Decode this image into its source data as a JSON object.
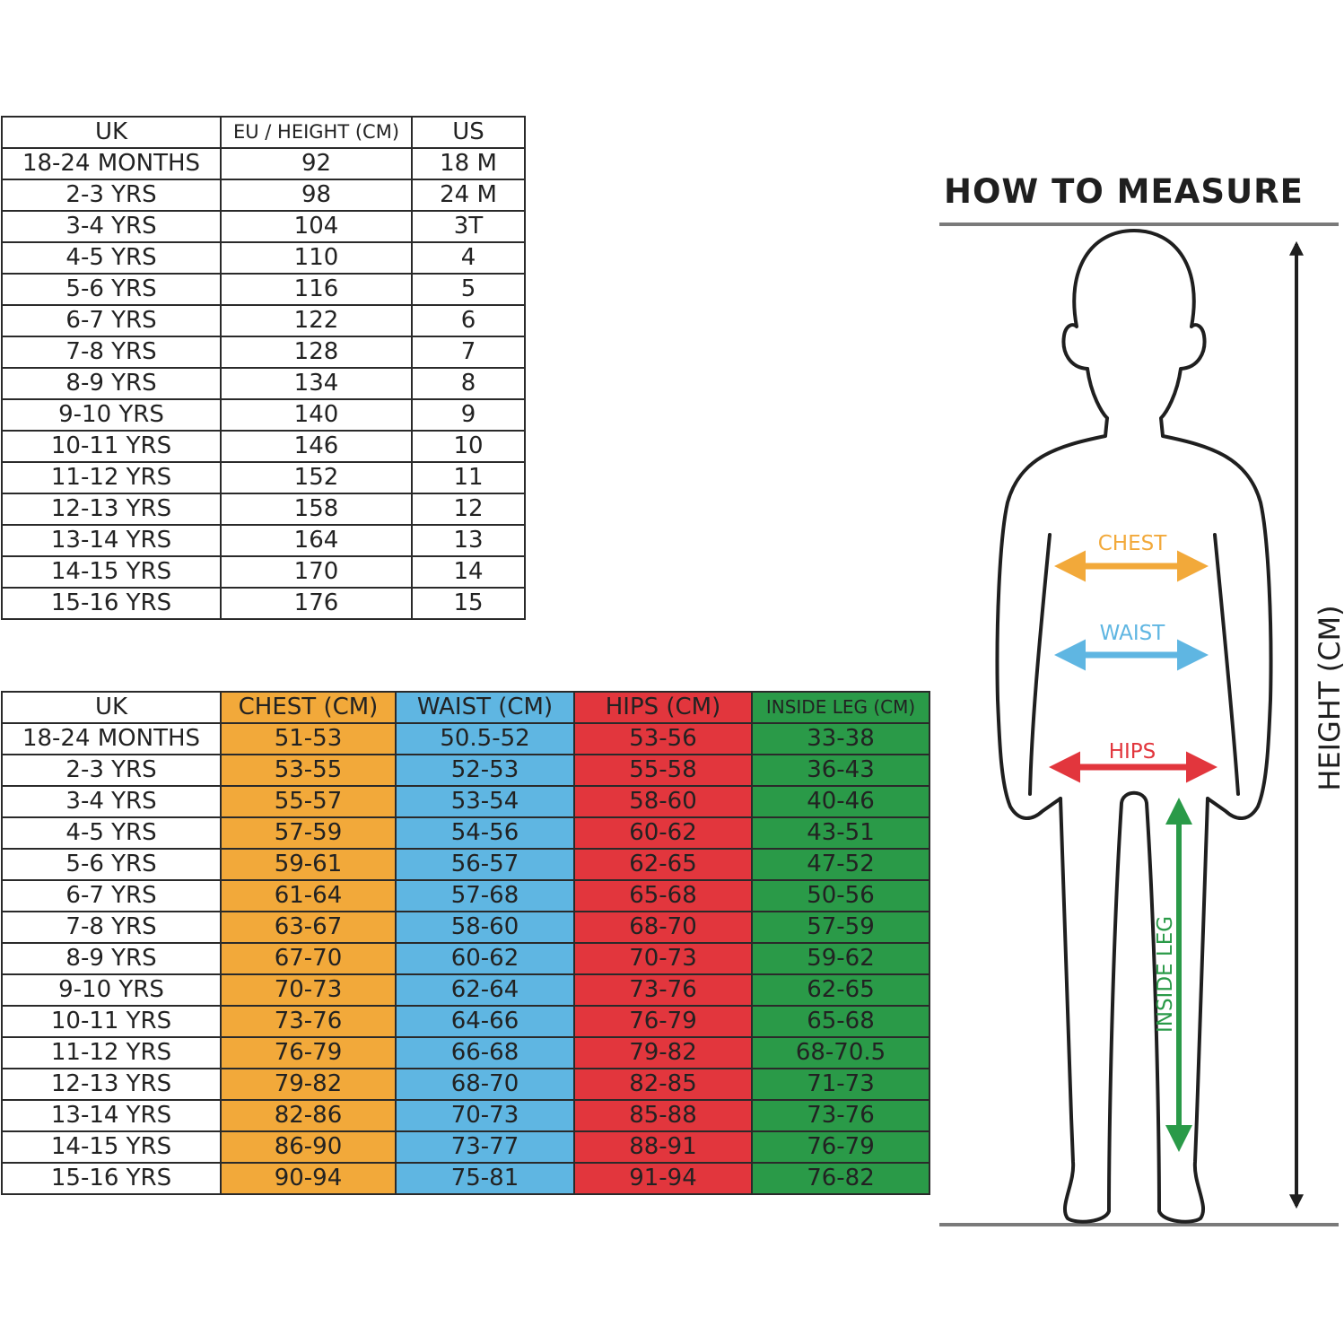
{
  "size_table": {
    "headers": [
      "UK",
      "EU / HEIGHT (CM)",
      "US"
    ],
    "rows": [
      [
        "18-24 MONTHS",
        "92",
        "18 M"
      ],
      [
        "2-3 YRS",
        "98",
        "24 M"
      ],
      [
        "3-4 YRS",
        "104",
        "3T"
      ],
      [
        "4-5 YRS",
        "110",
        "4"
      ],
      [
        "5-6 YRS",
        "116",
        "5"
      ],
      [
        "6-7 YRS",
        "122",
        "6"
      ],
      [
        "7-8 YRS",
        "128",
        "7"
      ],
      [
        "8-9 YRS",
        "134",
        "8"
      ],
      [
        "9-10 YRS",
        "140",
        "9"
      ],
      [
        "10-11 YRS",
        "146",
        "10"
      ],
      [
        "11-12 YRS",
        "152",
        "11"
      ],
      [
        "12-13 YRS",
        "158",
        "12"
      ],
      [
        "13-14 YRS",
        "164",
        "13"
      ],
      [
        "14-15 YRS",
        "170",
        "14"
      ],
      [
        "15-16 YRS",
        "176",
        "15"
      ]
    ]
  },
  "measure_table": {
    "headers": [
      "UK",
      "CHEST (CM)",
      "WAIST (CM)",
      "HIPS (CM)",
      "INSIDE LEG (CM)"
    ],
    "rows": [
      [
        "18-24 MONTHS",
        "51-53",
        "50.5-52",
        "53-56",
        "33-38"
      ],
      [
        "2-3 YRS",
        "53-55",
        "52-53",
        "55-58",
        "36-43"
      ],
      [
        "3-4 YRS",
        "55-57",
        "53-54",
        "58-60",
        "40-46"
      ],
      [
        "4-5 YRS",
        "57-59",
        "54-56",
        "60-62",
        "43-51"
      ],
      [
        "5-6 YRS",
        "59-61",
        "56-57",
        "62-65",
        "47-52"
      ],
      [
        "6-7 YRS",
        "61-64",
        "57-68",
        "65-68",
        "50-56"
      ],
      [
        "7-8 YRS",
        "63-67",
        "58-60",
        "68-70",
        "57-59"
      ],
      [
        "8-9 YRS",
        "67-70",
        "60-62",
        "70-73",
        "59-62"
      ],
      [
        "9-10 YRS",
        "70-73",
        "62-64",
        "73-76",
        "62-65"
      ],
      [
        "10-11 YRS",
        "73-76",
        "64-66",
        "76-79",
        "65-68"
      ],
      [
        "11-12 YRS",
        "76-79",
        "66-68",
        "79-82",
        "68-70.5"
      ],
      [
        "12-13 YRS",
        "79-82",
        "68-70",
        "82-85",
        "71-73"
      ],
      [
        "13-14 YRS",
        "82-86",
        "70-73",
        "85-88",
        "73-76"
      ],
      [
        "14-15 YRS",
        "86-90",
        "73-77",
        "88-91",
        "76-79"
      ],
      [
        "15-16 YRS",
        "90-94",
        "75-81",
        "91-94",
        "76-82"
      ]
    ]
  },
  "how_to_measure": {
    "title": "HOW TO MEASURE",
    "chest_label": "CHEST",
    "waist_label": "WAIST",
    "hips_label": "HIPS",
    "inside_leg_label": "INSIDE LEG",
    "height_label": "HEIGHT (CM)"
  },
  "colors": {
    "chest": "#f2a93a",
    "waist": "#5fb6e2",
    "hips": "#e2363d",
    "inside_leg": "#2a9a48",
    "line": "#2a2a2a"
  }
}
